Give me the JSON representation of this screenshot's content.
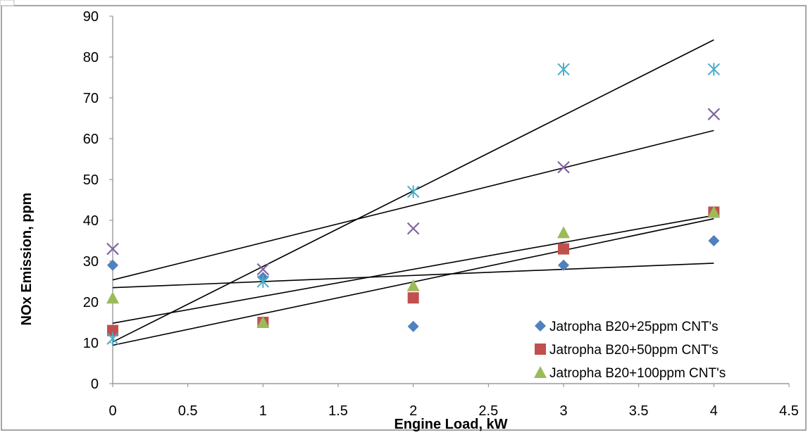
{
  "chart_data": {
    "type": "scatter",
    "title": "",
    "xlabel": "Engine Load, kW",
    "ylabel": "NOx Emission, ppm",
    "xlim": [
      0,
      4.5
    ],
    "ylim": [
      0,
      90
    ],
    "x_ticks": [
      "0",
      "0.5",
      "1",
      "1.5",
      "2",
      "2.5",
      "3",
      "3.5",
      "4",
      "4.5"
    ],
    "y_ticks": [
      "0",
      "10",
      "20",
      "30",
      "40",
      "50",
      "60",
      "70",
      "80",
      "90"
    ],
    "grid": false,
    "legend_placement": "bottom-right",
    "series": [
      {
        "name": "Jatropha B20+25ppm CNT's",
        "marker": "diamond",
        "color": "#4f81bd",
        "x": [
          0,
          1,
          2,
          3,
          4
        ],
        "y": [
          29,
          26,
          14,
          29,
          35
        ],
        "trendline": {
          "start": [
            0,
            23.5
          ],
          "end": [
            4,
            29.5
          ]
        }
      },
      {
        "name": "Jatropha B20+50ppm CNT's",
        "marker": "square",
        "color": "#c0504d",
        "x": [
          0,
          1,
          2,
          3,
          4
        ],
        "y": [
          13,
          15,
          21,
          33,
          42
        ],
        "trendline": {
          "start": [
            0,
            9.4
          ],
          "end": [
            4,
            40.4
          ]
        }
      },
      {
        "name": "Jatropha B20+100ppm CNT's",
        "marker": "triangle",
        "color": "#9bbb59",
        "x": [
          0,
          1,
          2,
          3,
          4
        ],
        "y": [
          21,
          15,
          24,
          37,
          42
        ],
        "trendline": {
          "start": [
            0,
            14.8
          ],
          "end": [
            4,
            41.2
          ]
        }
      },
      {
        "name": "",
        "marker": "x",
        "color": "#8064a2",
        "x": [
          0,
          1,
          2,
          3,
          4
        ],
        "y": [
          33,
          28,
          38,
          53,
          66
        ],
        "trendline": {
          "start": [
            0,
            25.4
          ],
          "end": [
            4,
            62
          ]
        }
      },
      {
        "name": "",
        "marker": "star",
        "color": "#4bacc6",
        "x": [
          0,
          1,
          2,
          3,
          4
        ],
        "y": [
          11,
          25,
          47,
          77,
          77
        ],
        "trendline": {
          "start": [
            0,
            10.2
          ],
          "end": [
            4,
            84.2
          ]
        }
      }
    ],
    "legend": [
      "Jatropha B20+25ppm CNT's",
      "Jatropha B20+50ppm CNT's",
      "Jatropha B20+100ppm CNT's"
    ]
  }
}
